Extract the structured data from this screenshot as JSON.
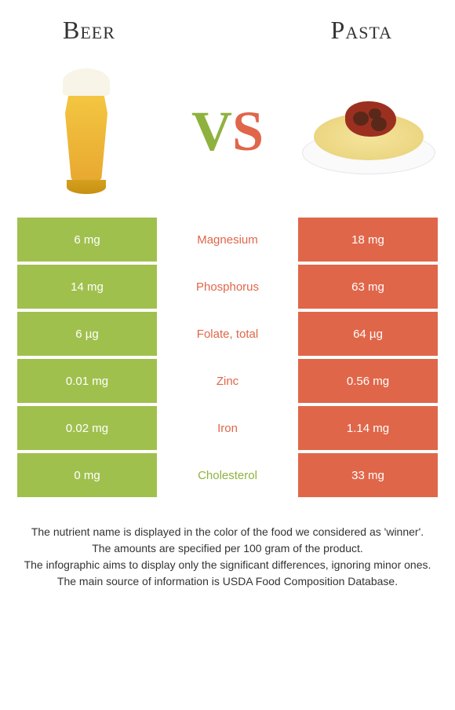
{
  "header": {
    "left_title": "Beer",
    "right_title": "Pasta"
  },
  "vs": {
    "v": "V",
    "s": "S"
  },
  "colors": {
    "left_bg": "#a0c04e",
    "right_bg": "#e0664a",
    "mid_text_winner_left": "#8fb23f",
    "mid_text_winner_right": "#e0664a"
  },
  "rows": [
    {
      "left": "6 mg",
      "mid": "Magnesium",
      "right": "18 mg",
      "winner": "right"
    },
    {
      "left": "14 mg",
      "mid": "Phosphorus",
      "right": "63 mg",
      "winner": "right"
    },
    {
      "left": "6 µg",
      "mid": "Folate, total",
      "right": "64 µg",
      "winner": "right"
    },
    {
      "left": "0.01 mg",
      "mid": "Zinc",
      "right": "0.56 mg",
      "winner": "right"
    },
    {
      "left": "0.02 mg",
      "mid": "Iron",
      "right": "1.14 mg",
      "winner": "right"
    },
    {
      "left": "0 mg",
      "mid": "Cholesterol",
      "right": "33 mg",
      "winner": "left"
    }
  ],
  "footer": {
    "line1": "The nutrient name is displayed in the color of the food we considered as 'winner'.",
    "line2": "The amounts are specified per 100 gram of the product.",
    "line3": "The infographic aims to display only the significant differences, ignoring minor ones.",
    "line4": "The main source of information is USDA Food Composition Database."
  }
}
